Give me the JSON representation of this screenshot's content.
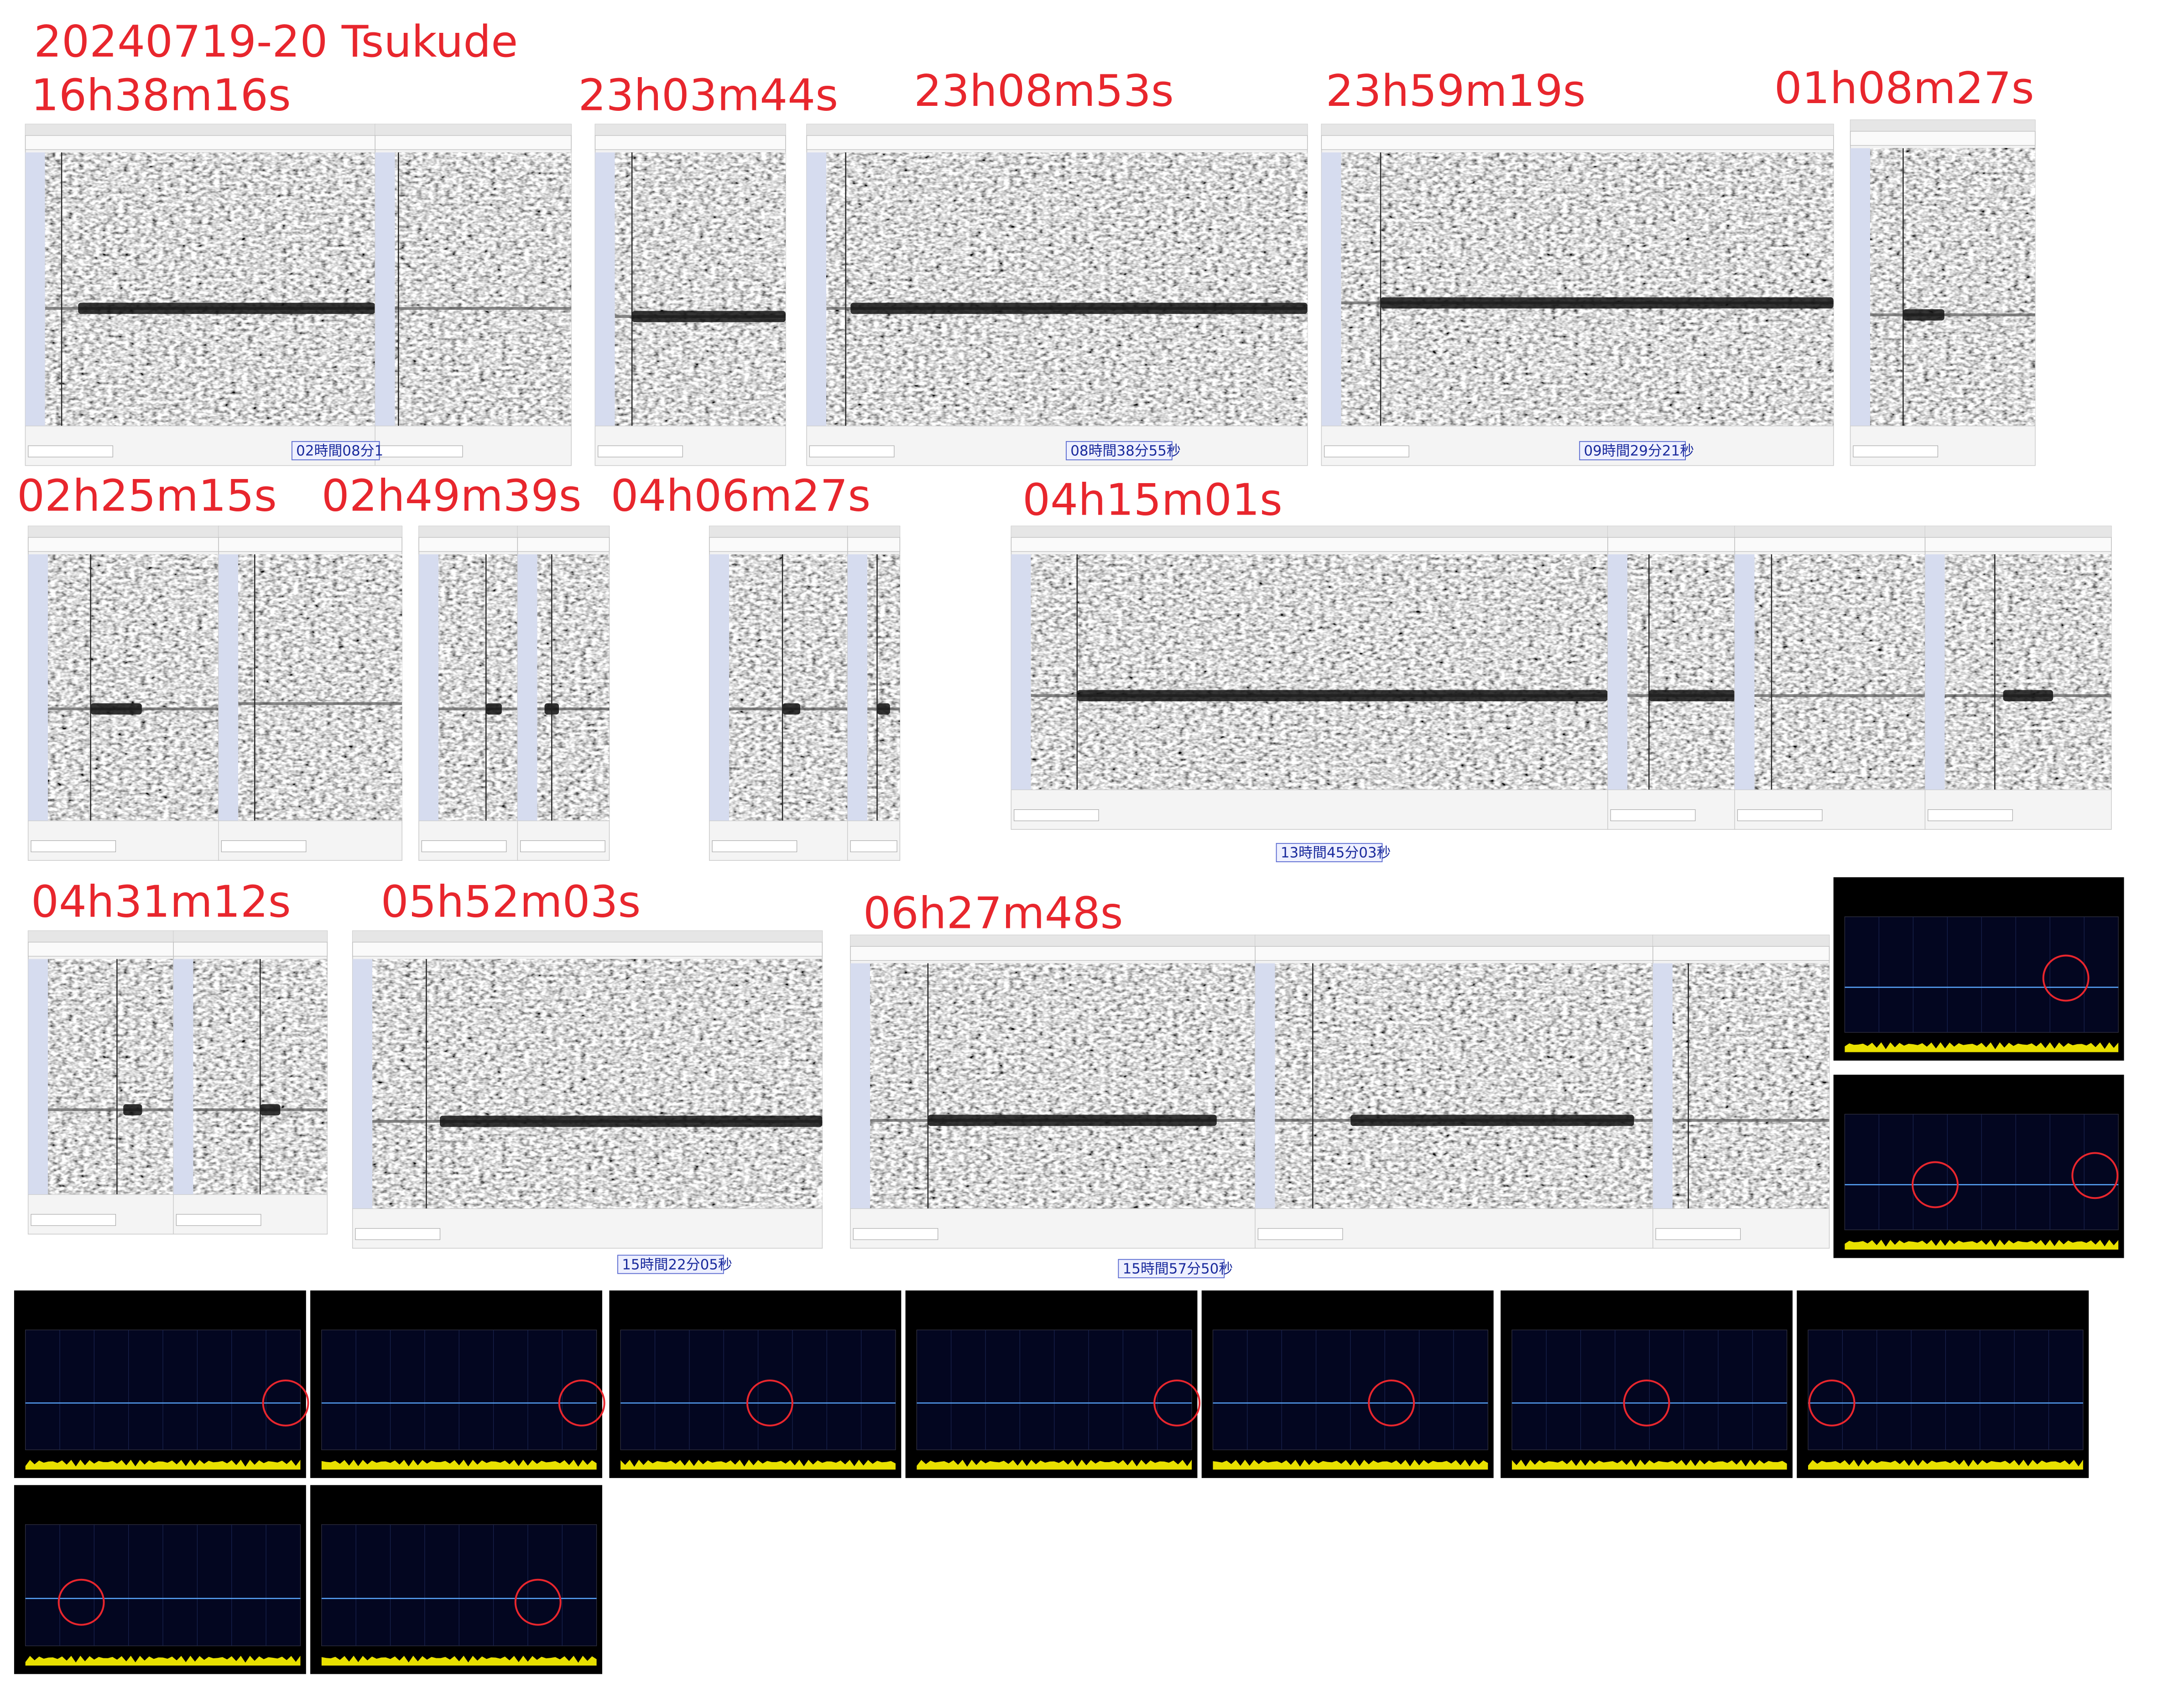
{
  "header": {
    "title": "20240719-20  Tsukude"
  },
  "labels": [
    "16h38m16s",
    "23h03m44s",
    "23h08m53s",
    "23h59m19s",
    "01h08m27s",
    "02h25m15s",
    "02h49m39s",
    "04h06m27s",
    "04h15m01s",
    "04h31m12s",
    "05h52m03s",
    "06h27m48s"
  ],
  "time_boxes": [
    "02時間08分1",
    "08時間38分55秒",
    "09時間29分21秒",
    "13時間45分03秒",
    "15時間22分05秒",
    "15時間57分50秒"
  ]
}
